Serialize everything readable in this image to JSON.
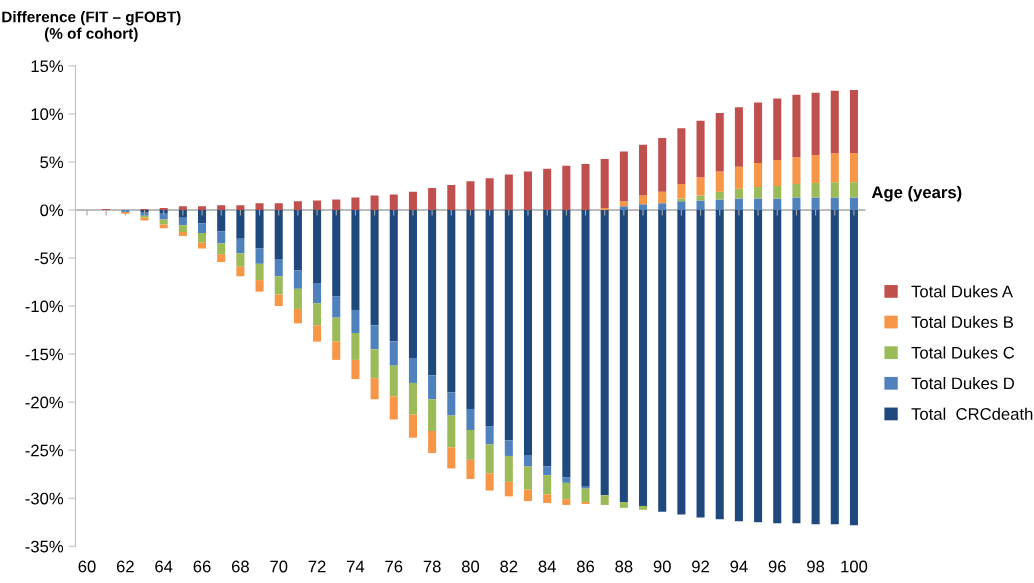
{
  "chart_data": {
    "type": "bar",
    "stacked": true,
    "ylabel": "Difference (FIT – gFOBT)\n(% of cohort)",
    "xlabel": "Age (years)",
    "categories": [
      "60",
      null,
      "62",
      null,
      "64",
      null,
      "66",
      null,
      "68",
      null,
      "70",
      null,
      "72",
      null,
      "74",
      null,
      "76",
      null,
      "78",
      null,
      "80",
      null,
      "82",
      null,
      "84",
      null,
      "86",
      null,
      "88",
      null,
      "90",
      null,
      "92",
      null,
      "94",
      null,
      "96",
      null,
      "98",
      null,
      "100"
    ],
    "ylim": [
      -35,
      15
    ],
    "yticks": [
      {
        "value": -35,
        "label": "-35%"
      },
      {
        "value": -30,
        "label": "-30%"
      },
      {
        "value": -25,
        "label": "-25%"
      },
      {
        "value": -20,
        "label": "-20%"
      },
      {
        "value": -15,
        "label": "-15%"
      },
      {
        "value": -10,
        "label": "-10%"
      },
      {
        "value": -5,
        "label": "-5%"
      },
      {
        "value": 0,
        "label": "0%"
      },
      {
        "value": 5,
        "label": "5%"
      },
      {
        "value": 10,
        "label": "10%"
      },
      {
        "value": 15,
        "label": "15%"
      }
    ],
    "grid": false,
    "legend": "right",
    "ref_lines": [
      {
        "axis": "y",
        "value": 0,
        "color": "#a6a6a6"
      }
    ],
    "series": [
      {
        "name": "Total  CRCdeath",
        "color": "#1f497d",
        "values": [
          0,
          0,
          0,
          -0.2,
          -0.4,
          -0.8,
          -1.4,
          -2.2,
          -3.0,
          -4.0,
          -5.1,
          -6.3,
          -7.6,
          -9.0,
          -10.4,
          -12.0,
          -13.7,
          -15.4,
          -17.2,
          -19.0,
          -20.7,
          -22.5,
          -24.0,
          -25.5,
          -26.7,
          -27.8,
          -28.8,
          -29.7,
          -30.4,
          -30.8,
          -31.4,
          -31.7,
          -32.0,
          -32.2,
          -32.4,
          -32.5,
          -32.6,
          -32.6,
          -32.7,
          -32.7,
          -32.8
        ]
      },
      {
        "name": "Total Dukes D",
        "color": "#4f81bd",
        "values": [
          0,
          0,
          -0.2,
          -0.4,
          -0.6,
          -0.8,
          -1.0,
          -1.3,
          -1.5,
          -1.6,
          -1.8,
          -1.9,
          -2.1,
          -2.2,
          -2.4,
          -2.5,
          -2.5,
          -2.6,
          -2.5,
          -2.4,
          -2.2,
          -1.9,
          -1.6,
          -1.2,
          -0.9,
          -0.6,
          -0.2,
          0,
          0.4,
          0.6,
          0.7,
          0.9,
          1.0,
          1.1,
          1.2,
          1.2,
          1.2,
          1.3,
          1.3,
          1.3,
          1.3
        ]
      },
      {
        "name": "Total Dukes C",
        "color": "#9bbb59",
        "values": [
          0,
          0,
          0,
          -0.2,
          -0.5,
          -0.7,
          -1.0,
          -1.1,
          -1.4,
          -1.7,
          -1.9,
          -2.1,
          -2.3,
          -2.5,
          -2.8,
          -3.0,
          -3.2,
          -3.3,
          -3.3,
          -3.3,
          -3.1,
          -3.0,
          -2.7,
          -2.4,
          -2.0,
          -1.7,
          -1.4,
          -1.0,
          -0.6,
          -0.4,
          0,
          0.3,
          0.5,
          0.8,
          1.0,
          1.2,
          1.3,
          1.4,
          1.5,
          1.6,
          1.6
        ]
      },
      {
        "name": "Total Dukes B",
        "color": "#f79646",
        "values": [
          0,
          0,
          -0.2,
          -0.3,
          -0.4,
          -0.4,
          -0.6,
          -0.8,
          -1.0,
          -1.2,
          -1.2,
          -1.5,
          -1.7,
          -1.9,
          -2.0,
          -2.2,
          -2.4,
          -2.4,
          -2.3,
          -2.2,
          -2.0,
          -1.8,
          -1.5,
          -1.2,
          -0.9,
          -0.6,
          -0.2,
          0.2,
          0.5,
          0.9,
          1.2,
          1.5,
          1.9,
          2.1,
          2.3,
          2.5,
          2.7,
          2.8,
          2.9,
          3.0,
          3.0
        ]
      },
      {
        "name": "Total Dukes A",
        "color": "#c0504d",
        "values": [
          0,
          0.1,
          0,
          0.1,
          0.2,
          0.4,
          0.4,
          0.5,
          0.5,
          0.7,
          0.7,
          0.9,
          1.0,
          1.1,
          1.3,
          1.5,
          1.6,
          1.9,
          2.3,
          2.6,
          3.0,
          3.3,
          3.7,
          4.0,
          4.3,
          4.6,
          4.8,
          5.1,
          5.2,
          5.3,
          5.6,
          5.8,
          5.9,
          6.1,
          6.2,
          6.3,
          6.4,
          6.5,
          6.5,
          6.5,
          6.6
        ]
      }
    ]
  }
}
